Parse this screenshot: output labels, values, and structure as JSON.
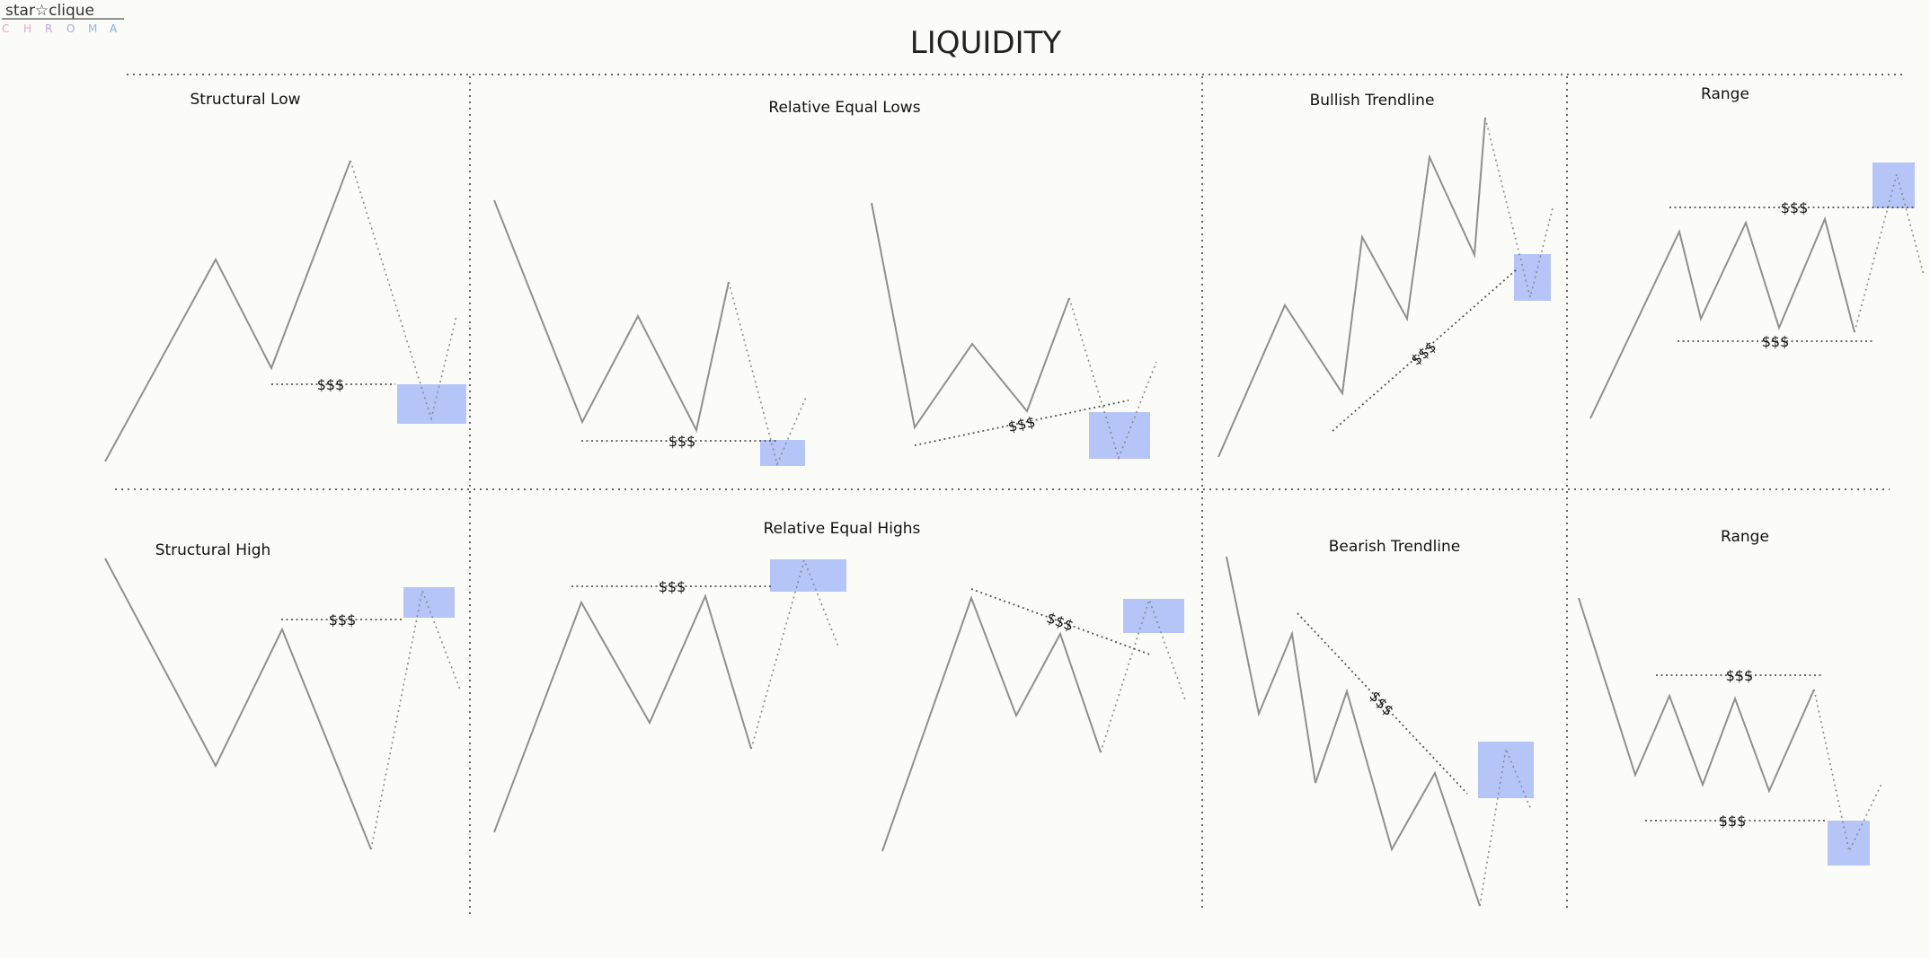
{
  "logo": {
    "name": "star☆clique",
    "sub_letters": [
      "C",
      "H",
      "R",
      "O",
      "M",
      "A"
    ],
    "sub_colors": [
      "#f0a0b0",
      "#f0a0c8",
      "#c8a0e8",
      "#a0a8f0",
      "#90b8f0",
      "#70b0f0"
    ]
  },
  "title": "LIQUIDITY",
  "colors": {
    "background": "#fbfbf7",
    "zone": "#aebff7",
    "price_line": "#8f8f8f"
  },
  "liquidity_label": "$$$",
  "panels": [
    {
      "id": "structural-low",
      "title": "Structural Low"
    },
    {
      "id": "relative-equal-lows",
      "title": "Relative Equal Lows"
    },
    {
      "id": "bullish-trendline",
      "title": "Bullish Trendline"
    },
    {
      "id": "range-top",
      "title": "Range"
    },
    {
      "id": "structural-high",
      "title": "Structural High"
    },
    {
      "id": "relative-equal-highs",
      "title": "Relative Equal Highs"
    },
    {
      "id": "bearish-trendline",
      "title": "Bearish Trendline"
    },
    {
      "id": "range-bottom",
      "title": "Range"
    }
  ]
}
